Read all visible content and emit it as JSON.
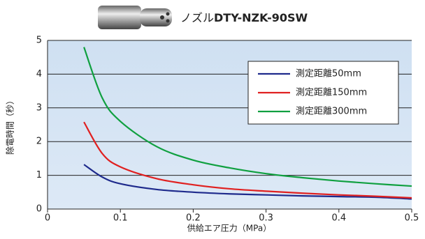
{
  "chart_data": {
    "type": "line",
    "title": [
      "ノズル",
      "DTY-NZK-90SW"
    ],
    "x_label": "供給エア圧力（MPa）",
    "y_label": "除電時間（秒）",
    "x": [
      0.05,
      0.075,
      0.1,
      0.15,
      0.2,
      0.25,
      0.3,
      0.35,
      0.4,
      0.45,
      0.5
    ],
    "series": [
      {
        "name": "測定距離50mm",
        "color": "#1e2a8c",
        "values": [
          1.32,
          0.95,
          0.75,
          0.58,
          0.5,
          0.45,
          0.42,
          0.39,
          0.37,
          0.35,
          0.3
        ]
      },
      {
        "name": "測定距離150mm",
        "color": "#e02020",
        "values": [
          2.58,
          1.65,
          1.25,
          0.9,
          0.72,
          0.6,
          0.53,
          0.47,
          0.42,
          0.38,
          0.33
        ]
      },
      {
        "name": "測定距離300mm",
        "color": "#10a040",
        "values": [
          4.8,
          3.3,
          2.6,
          1.85,
          1.45,
          1.22,
          1.05,
          0.93,
          0.83,
          0.75,
          0.68
        ]
      }
    ],
    "xlim": [
      0,
      0.5
    ],
    "xticks": [
      0,
      0.1,
      0.2,
      0.3,
      0.4,
      0.5
    ],
    "ylim": [
      0,
      5
    ],
    "yticks": [
      0,
      1,
      2,
      3,
      4,
      5
    ],
    "grid": true,
    "legend": "upper right"
  }
}
